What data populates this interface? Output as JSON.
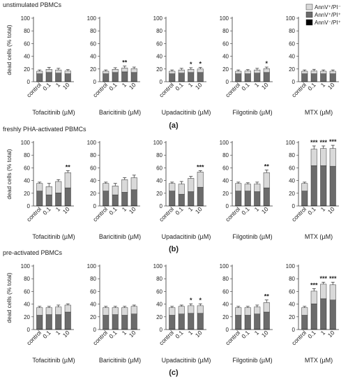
{
  "figure": {
    "panels": [
      {
        "header": "unstimulated PBMCs",
        "label": "(a)"
      },
      {
        "header": "freshly PHA-activated PBMCs",
        "label": "(b)"
      },
      {
        "header": "pre-activated PBMCs",
        "label": "(c)"
      }
    ],
    "ylabel": "dead cells (% total)",
    "yticks": [
      "0",
      "20",
      "40",
      "60",
      "80",
      "100"
    ],
    "categories": [
      "control",
      "0.1",
      "1",
      "10"
    ],
    "drugs": [
      "Tofacitinib (µM)",
      "Baricitinib (µM)",
      "Upadacitinib (µM)",
      "Filgotinib (µM)",
      "MTX (µM)"
    ],
    "legend": [
      {
        "name": "AnnV⁺/PI⁻",
        "color": "#d9d9d9"
      },
      {
        "name": "AnnV⁺/PI⁺",
        "color": "#6b6b6b"
      },
      {
        "name": "AnnV⁻/PI⁺",
        "color": "#000000"
      }
    ]
  },
  "chart_data": [
    {
      "type": "bar",
      "stacked": true,
      "panel": "(a)",
      "title": "unstimulated PBMCs",
      "xlabel": "Tofacitinib (µM)",
      "ylabel": "dead cells (% total)",
      "ylim": [
        0,
        100
      ],
      "categories": [
        "control",
        "0.1",
        "1",
        "10"
      ],
      "series": [
        {
          "name": "AnnV⁻/PI⁺",
          "values": [
            0.5,
            0.5,
            0.5,
            0.5
          ]
        },
        {
          "name": "AnnV⁺/PI⁺",
          "values": [
            12,
            14,
            13,
            12
          ]
        },
        {
          "name": "AnnV⁺/PI⁻",
          "values": [
            4,
            5,
            5,
            4.5
          ]
        }
      ],
      "errors": [
        2,
        3,
        2.5,
        2
      ],
      "annotations": [
        "",
        "",
        "",
        ""
      ]
    },
    {
      "type": "bar",
      "stacked": true,
      "panel": "(a)",
      "xlabel": "Baricitinib (µM)",
      "ylim": [
        0,
        100
      ],
      "categories": [
        "control",
        "0.1",
        "1",
        "10"
      ],
      "series": [
        {
          "name": "AnnV⁻/PI⁺",
          "values": [
            0.5,
            0.5,
            0.5,
            0.5
          ]
        },
        {
          "name": "AnnV⁺/PI⁺",
          "values": [
            12,
            14,
            15,
            14
          ]
        },
        {
          "name": "AnnV⁺/PI⁻",
          "values": [
            4,
            5,
            6,
            6
          ]
        }
      ],
      "errors": [
        2,
        2.5,
        3,
        2.5
      ],
      "annotations": [
        "",
        "",
        "**",
        ""
      ]
    },
    {
      "type": "bar",
      "stacked": true,
      "panel": "(a)",
      "xlabel": "Upadacitinib (µM)",
      "ylim": [
        0,
        100
      ],
      "categories": [
        "control",
        "0.1",
        "1",
        "10"
      ],
      "series": [
        {
          "name": "AnnV⁻/PI⁺",
          "values": [
            0.5,
            0.5,
            0.5,
            0.5
          ]
        },
        {
          "name": "AnnV⁺/PI⁺",
          "values": [
            12,
            13,
            14,
            14
          ]
        },
        {
          "name": "AnnV⁺/PI⁻",
          "values": [
            4,
            5,
            5,
            5.5
          ]
        }
      ],
      "errors": [
        2,
        2.5,
        2.5,
        2.5
      ],
      "annotations": [
        "",
        "",
        "*",
        "*"
      ]
    },
    {
      "type": "bar",
      "stacked": true,
      "panel": "(a)",
      "xlabel": "Filgotinib (µM)",
      "ylim": [
        0,
        100
      ],
      "categories": [
        "control",
        "0.1",
        "1",
        "10"
      ],
      "series": [
        {
          "name": "AnnV⁻/PI⁺",
          "values": [
            0.5,
            0.5,
            0.5,
            0.5
          ]
        },
        {
          "name": "AnnV⁺/PI⁺",
          "values": [
            12,
            12,
            13,
            14
          ]
        },
        {
          "name": "AnnV⁺/PI⁻",
          "values": [
            4,
            4.5,
            5,
            6
          ]
        }
      ],
      "errors": [
        2,
        2,
        2.5,
        2.5
      ],
      "annotations": [
        "",
        "",
        "",
        "*"
      ]
    },
    {
      "type": "bar",
      "stacked": true,
      "panel": "(a)",
      "xlabel": "MTX (µM)",
      "ylim": [
        0,
        100
      ],
      "categories": [
        "control",
        "0.1",
        "1",
        "10"
      ],
      "series": [
        {
          "name": "AnnV⁻/PI⁺",
          "values": [
            0.5,
            0.5,
            0.5,
            0.5
          ]
        },
        {
          "name": "AnnV⁺/PI⁺",
          "values": [
            12,
            12,
            12,
            12
          ]
        },
        {
          "name": "AnnV⁺/PI⁻",
          "values": [
            4,
            4.5,
            4,
            4
          ]
        }
      ],
      "errors": [
        2,
        2.5,
        2,
        2
      ],
      "annotations": [
        "",
        "",
        "",
        ""
      ]
    },
    {
      "type": "bar",
      "stacked": true,
      "panel": "(b)",
      "title": "freshly PHA-activated PBMCs",
      "xlabel": "Tofacitinib (µM)",
      "ylabel": "dead cells (% total)",
      "ylim": [
        0,
        100
      ],
      "categories": [
        "control",
        "0.1",
        "1",
        "10"
      ],
      "series": [
        {
          "name": "AnnV⁻/PI⁺",
          "values": [
            0.5,
            0.5,
            0.5,
            0.5
          ]
        },
        {
          "name": "AnnV⁺/PI⁺",
          "values": [
            23,
            17,
            20,
            28
          ]
        },
        {
          "name": "AnnV⁺/PI⁻",
          "values": [
            12,
            13,
            18,
            24
          ]
        }
      ],
      "errors": [
        2,
        5,
        3,
        3
      ],
      "annotations": [
        "",
        "",
        "",
        "**"
      ]
    },
    {
      "type": "bar",
      "stacked": true,
      "panel": "(b)",
      "xlabel": "Baricitinib (µM)",
      "ylim": [
        0,
        100
      ],
      "categories": [
        "control",
        "0.1",
        "1",
        "10"
      ],
      "series": [
        {
          "name": "AnnV⁻/PI⁺",
          "values": [
            0.5,
            0.5,
            0.5,
            0.5
          ]
        },
        {
          "name": "AnnV⁺/PI⁺",
          "values": [
            23,
            17,
            21,
            25
          ]
        },
        {
          "name": "AnnV⁺/PI⁻",
          "values": [
            12,
            14,
            20,
            19
          ]
        }
      ],
      "errors": [
        2,
        4,
        3,
        4
      ],
      "annotations": [
        "",
        "",
        "",
        ""
      ]
    },
    {
      "type": "bar",
      "stacked": true,
      "panel": "(b)",
      "xlabel": "Upadacitinib (µM)",
      "ylim": [
        0,
        100
      ],
      "categories": [
        "control",
        "0.1",
        "1",
        "10"
      ],
      "series": [
        {
          "name": "AnnV⁻/PI⁺",
          "values": [
            0.5,
            0.5,
            0.5,
            0.5
          ]
        },
        {
          "name": "AnnV⁺/PI⁺",
          "values": [
            23,
            18,
            22,
            29
          ]
        },
        {
          "name": "AnnV⁺/PI⁻",
          "values": [
            12,
            16,
            21,
            24
          ]
        }
      ],
      "errors": [
        2,
        4,
        3,
        2
      ],
      "annotations": [
        "",
        "",
        "",
        "***"
      ]
    },
    {
      "type": "bar",
      "stacked": true,
      "panel": "(b)",
      "xlabel": "Filgotinib (µM)",
      "ylim": [
        0,
        100
      ],
      "categories": [
        "control",
        "0.1",
        "1",
        "10"
      ],
      "series": [
        {
          "name": "AnnV⁻/PI⁺",
          "values": [
            0.5,
            0.5,
            0.5,
            0.5
          ]
        },
        {
          "name": "AnnV⁺/PI⁺",
          "values": [
            23,
            23,
            22,
            28
          ]
        },
        {
          "name": "AnnV⁺/PI⁻",
          "values": [
            12,
            11,
            12,
            24
          ]
        }
      ],
      "errors": [
        2,
        2,
        3,
        4
      ],
      "annotations": [
        "",
        "",
        "",
        "**"
      ]
    },
    {
      "type": "bar",
      "stacked": true,
      "panel": "(b)",
      "xlabel": "MTX (µM)",
      "ylim": [
        0,
        100
      ],
      "categories": [
        "control",
        "0.1",
        "1",
        "10"
      ],
      "series": [
        {
          "name": "AnnV⁻/PI⁺",
          "values": [
            0.5,
            0.5,
            0.5,
            0.5
          ]
        },
        {
          "name": "AnnV⁺/PI⁺",
          "values": [
            23,
            63,
            63,
            62
          ]
        },
        {
          "name": "AnnV⁺/PI⁻",
          "values": [
            12,
            26,
            27,
            28
          ]
        }
      ],
      "errors": [
        2,
        5,
        4,
        5
      ],
      "annotations": [
        "",
        "***",
        "***",
        "***"
      ]
    },
    {
      "type": "bar",
      "stacked": true,
      "panel": "(c)",
      "title": "pre-activated PBMCs",
      "xlabel": "Tofacitinib (µM)",
      "ylabel": "dead cells (% total)",
      "ylim": [
        0,
        100
      ],
      "categories": [
        "control",
        "0.1",
        "1",
        "10"
      ],
      "series": [
        {
          "name": "AnnV⁻/PI⁺",
          "values": [
            0.5,
            0.5,
            0.5,
            0.5
          ]
        },
        {
          "name": "AnnV⁺/PI⁺",
          "values": [
            22,
            23,
            23,
            27
          ]
        },
        {
          "name": "AnnV⁺/PI⁻",
          "values": [
            12,
            11,
            12,
            11
          ]
        }
      ],
      "errors": [
        2,
        2,
        3,
        2
      ],
      "annotations": [
        "",
        "",
        "",
        ""
      ]
    },
    {
      "type": "bar",
      "stacked": true,
      "panel": "(c)",
      "xlabel": "Baricitinib (µM)",
      "ylim": [
        0,
        100
      ],
      "categories": [
        "control",
        "0.1",
        "1",
        "10"
      ],
      "series": [
        {
          "name": "AnnV⁻/PI⁺",
          "values": [
            0.5,
            0.5,
            0.5,
            0.5
          ]
        },
        {
          "name": "AnnV⁺/PI⁺",
          "values": [
            22,
            23,
            22,
            24
          ]
        },
        {
          "name": "AnnV⁺/PI⁻",
          "values": [
            12,
            11,
            12,
            12
          ]
        }
      ],
      "errors": [
        2,
        2,
        2,
        2
      ],
      "annotations": [
        "",
        "",
        "",
        ""
      ]
    },
    {
      "type": "bar",
      "stacked": true,
      "panel": "(c)",
      "xlabel": "Upadacitinib (µM)",
      "ylim": [
        0,
        100
      ],
      "categories": [
        "control",
        "0.1",
        "1",
        "10"
      ],
      "series": [
        {
          "name": "AnnV⁻/PI⁺",
          "values": [
            0.5,
            0.5,
            0.5,
            0.5
          ]
        },
        {
          "name": "AnnV⁺/PI⁺",
          "values": [
            22,
            24,
            25,
            25
          ]
        },
        {
          "name": "AnnV⁺/PI⁻",
          "values": [
            12,
            12,
            12,
            12
          ]
        }
      ],
      "errors": [
        2,
        2,
        3,
        3
      ],
      "annotations": [
        "",
        "",
        "*",
        "*"
      ]
    },
    {
      "type": "bar",
      "stacked": true,
      "panel": "(c)",
      "xlabel": "Filgotinib (µM)",
      "ylim": [
        0,
        100
      ],
      "categories": [
        "control",
        "0.1",
        "1",
        "10"
      ],
      "series": [
        {
          "name": "AnnV⁻/PI⁺",
          "values": [
            0.5,
            0.5,
            0.5,
            0.5
          ]
        },
        {
          "name": "AnnV⁺/PI⁺",
          "values": [
            22,
            22,
            24,
            27
          ]
        },
        {
          "name": "AnnV⁺/PI⁻",
          "values": [
            12,
            12,
            11,
            15
          ]
        }
      ],
      "errors": [
        2,
        2,
        3,
        4
      ],
      "annotations": [
        "",
        "",
        "",
        "**"
      ]
    },
    {
      "type": "bar",
      "stacked": true,
      "panel": "(c)",
      "xlabel": "MTX (µM)",
      "ylim": [
        0,
        100
      ],
      "categories": [
        "control",
        "0.1",
        "1",
        "10"
      ],
      "series": [
        {
          "name": "AnnV⁻/PI⁺",
          "values": [
            0.5,
            0.5,
            0.5,
            0.5
          ]
        },
        {
          "name": "AnnV⁺/PI⁺",
          "values": [
            22,
            40,
            48,
            46
          ]
        },
        {
          "name": "AnnV⁺/PI⁻",
          "values": [
            12,
            20,
            23,
            24
          ]
        }
      ],
      "errors": [
        2,
        4,
        3,
        4
      ],
      "annotations": [
        "",
        "***",
        "***",
        "***"
      ]
    }
  ]
}
